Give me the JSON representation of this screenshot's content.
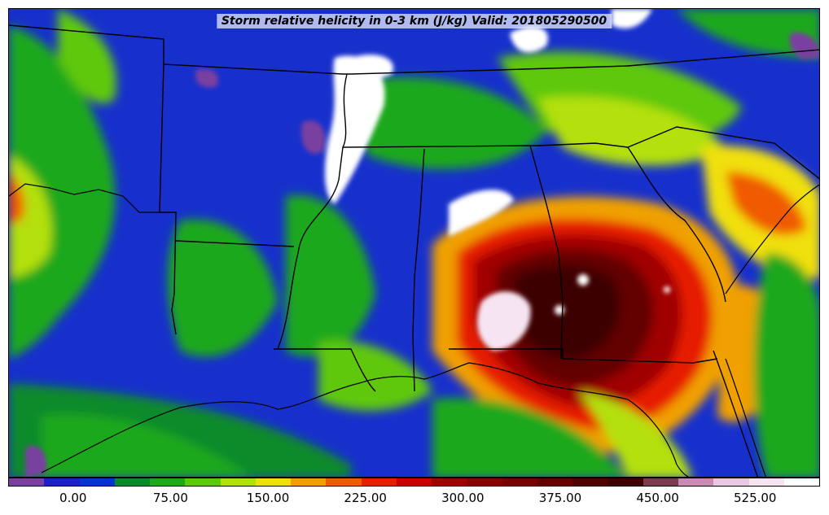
{
  "title": "Storm relative helicity in 0-3 km (J/kg) Valid: 201805290500",
  "colorbar": {
    "colors": [
      "#7a3fa0",
      "#1f1fc8",
      "#0a32d2",
      "#0a8a2a",
      "#1fa81f",
      "#5ec80a",
      "#b4e00a",
      "#f0e00a",
      "#f0a000",
      "#f05a00",
      "#e61e00",
      "#c80000",
      "#a00000",
      "#8a0000",
      "#780000",
      "#640000",
      "#500000",
      "#3c0000",
      "#7a3c50",
      "#c88cb4",
      "#e8c8e4",
      "#f6e4f2",
      "#ffffff"
    ],
    "ticks": [
      {
        "label": "0.00",
        "value": 0
      },
      {
        "label": "75.00",
        "value": 75
      },
      {
        "label": "150.00",
        "value": 150
      },
      {
        "label": "225.00",
        "value": 225
      },
      {
        "label": "300.00",
        "value": 300
      },
      {
        "label": "375.00",
        "value": 375
      },
      {
        "label": "450.00",
        "value": 450
      },
      {
        "label": "525.00",
        "value": 525
      }
    ],
    "range": [
      -50,
      575
    ]
  }
}
